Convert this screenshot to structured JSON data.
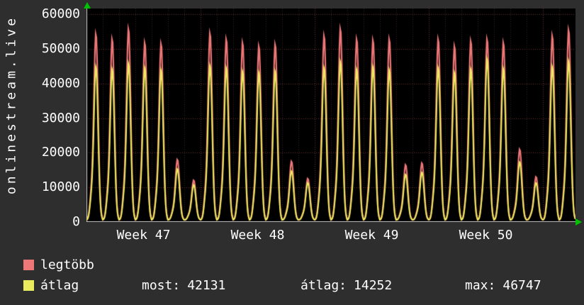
{
  "app": {
    "background": "#2e2e2e",
    "text_color": "#ffffff"
  },
  "chart_data": {
    "type": "line",
    "title": "onlinestream.live",
    "plot_bg": "#000000",
    "axis_color": "#c8c8c8",
    "arrow_color": "#00c000",
    "grid": {
      "on": true,
      "color": "#6b3434",
      "minor_color": "#3a2222"
    },
    "y_axis": {
      "ticks": [
        0,
        10000,
        20000,
        30000,
        40000,
        50000,
        60000
      ],
      "tick_step": 10000,
      "ylim": [
        0,
        61700
      ]
    },
    "x_axis": {
      "week_labels": [
        "Week 47",
        "Week 48",
        "Week 49",
        "Week 50"
      ],
      "days_total": 30,
      "week_starts_day_index": [
        0,
        7,
        14,
        21,
        28
      ]
    },
    "series": [
      {
        "name": "legtöbb",
        "color": "#ee7777",
        "daily_peaks": [
          54000,
          52500,
          55500,
          51500,
          51200,
          17500,
          11500,
          54200,
          52500,
          51500,
          50500,
          51000,
          17000,
          12000,
          53500,
          55500,
          52500,
          52200,
          52500,
          16000,
          16500,
          52500,
          50500,
          52000,
          52500,
          51500,
          20500,
          12500,
          53500,
          55200
        ]
      },
      {
        "name": "átlag",
        "color": "#ebeb5e",
        "daily_peaks": [
          44500,
          43800,
          45500,
          44200,
          43500,
          14800,
          10200,
          44800,
          44200,
          43200,
          42800,
          43200,
          14200,
          10800,
          44200,
          46000,
          43800,
          44500,
          43600,
          13200,
          13800,
          44200,
          42800,
          43800,
          46747,
          44000,
          16800,
          10800,
          44500,
          46200
        ]
      }
    ],
    "stats": {
      "most": 42131,
      "atlag": 14252,
      "max": 46747
    }
  },
  "stats_bar": {
    "most_label": "most:",
    "avg_label": "átlag:",
    "max_label": "max:"
  }
}
